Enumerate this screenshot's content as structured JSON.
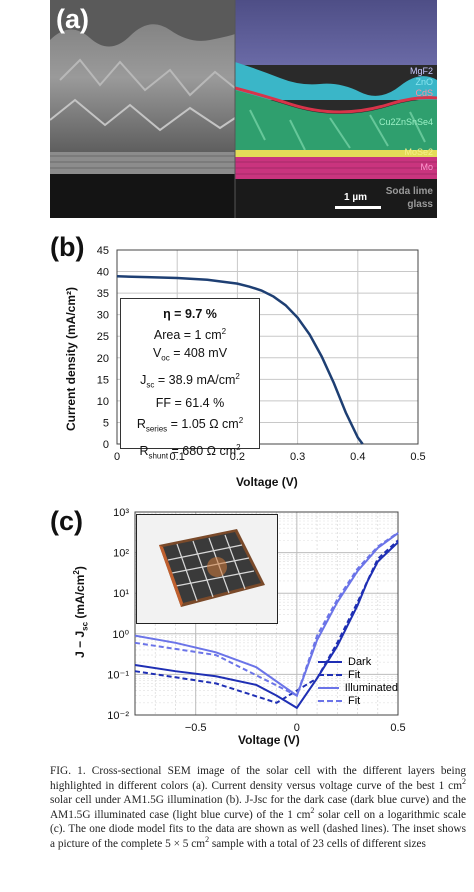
{
  "panel_a": {
    "letter": "(a)",
    "layers": [
      "MgF2",
      "ZnO",
      "CdS",
      "Cu2ZnSnSe4",
      "MoSe2",
      "Mo",
      "Soda lime",
      "glass"
    ],
    "scale_bar": "1 µm"
  },
  "panel_b": {
    "letter": "(b)",
    "box": {
      "eta": "η = 9.7 %",
      "area_pre": "Area = 1 cm",
      "area_sup": "2",
      "voc_pre": "V",
      "voc_sub": "oc",
      "voc_post": " = 408 mV",
      "jsc_pre": "J",
      "jsc_sub": "sc",
      "jsc_post": " = 38.9 mA/cm",
      "jsc_sup": "2",
      "ff": "FF = 61.4 %",
      "rs_pre": "R",
      "rs_sub": "series",
      "rs_post": " = 1.05 Ω cm",
      "rs_sup": "2",
      "rsh_pre": "R",
      "rsh_sub": "shunt",
      "rsh_post": " = 680 Ω cm",
      "rsh_sup": "2"
    }
  },
  "panel_c": {
    "letter": "(c)",
    "legend": [
      "Dark",
      "Fit",
      "Illuminated",
      "Fit"
    ]
  },
  "colors": {
    "dark_blue": "#1f2fb4",
    "light_blue": "#6b74e8",
    "curve_b": "#1e3f73"
  },
  "caption": {
    "p1": "FIG. 1. Cross-sectional SEM image of the solar cell with the different layers being highlighted in different colors (a). Current density versus voltage curve of the best 1 cm",
    "p1_sup": "2",
    "p2": " solar cell under AM1.5G illumination (b). J-Jsc for the dark case (dark blue curve) and the AM1.5G illuminated case (light blue curve) of the 1 cm",
    "p2_sup": "2",
    "p3": " solar cell on a logarithmic scale (c). The one diode model fits to the data are shown as well (dashed lines). The inset shows a picture of the complete 5 × 5 cm",
    "p3_sup": "2",
    "p4": " sample with a total of 23 cells of different sizes"
  },
  "chart_data": [
    {
      "type": "line",
      "xlabel": "Voltage (V)",
      "ylabel": "Current density (mA/cm²)",
      "xlim": [
        0,
        0.5
      ],
      "ylim": [
        0,
        45
      ],
      "x_ticks": [
        "0",
        "0.1",
        "0.2",
        "0.3",
        "0.4",
        "0.5"
      ],
      "y_ticks": [
        "0",
        "5",
        "10",
        "15",
        "20",
        "25",
        "30",
        "35",
        "40",
        "45"
      ],
      "grid": true,
      "series": [
        {
          "x": [
            0,
            0.05,
            0.1,
            0.15,
            0.2,
            0.22,
            0.24,
            0.26,
            0.28,
            0.3,
            0.32,
            0.34,
            0.36,
            0.38,
            0.4,
            0.408
          ],
          "y": [
            38.9,
            38.7,
            38.5,
            38.1,
            37.2,
            36.5,
            35.6,
            34.2,
            32.2,
            29.3,
            25.4,
            20.3,
            14.2,
            7.3,
            1.5,
            0
          ]
        }
      ]
    },
    {
      "type": "line",
      "xlabel": "Voltage (V)",
      "ylabel": "J − J_sc (mA/cm²)",
      "xlim": [
        -0.8,
        0.5
      ],
      "ylim": [
        0.01,
        1000
      ],
      "log_y": true,
      "x_ticks": [
        "−0.5",
        "0",
        "0.5"
      ],
      "y_ticks": [
        "10⁻²",
        "10⁻¹",
        "10⁰",
        "10¹",
        "10²",
        "10³"
      ],
      "grid": true,
      "series": [
        {
          "name": "Dark",
          "x": [
            -0.8,
            -0.6,
            -0.4,
            -0.2,
            -0.1,
            0,
            0.1,
            0.2,
            0.3,
            0.35,
            0.4,
            0.5
          ],
          "y": [
            0.17,
            0.12,
            0.09,
            0.055,
            0.03,
            0.015,
            0.08,
            0.5,
            5,
            20,
            60,
            180
          ]
        },
        {
          "name": "Fit",
          "x": [
            -0.8,
            -0.4,
            -0.1,
            0.1,
            0.2,
            0.3,
            0.4,
            0.5
          ],
          "y": [
            0.12,
            0.06,
            0.02,
            0.08,
            0.6,
            6,
            70,
            200
          ]
        },
        {
          "name": "Illuminated",
          "x": [
            -0.8,
            -0.6,
            -0.4,
            -0.2,
            0,
            0.1,
            0.2,
            0.3,
            0.4,
            0.5
          ],
          "y": [
            0.9,
            0.6,
            0.35,
            0.15,
            0.03,
            0.7,
            6,
            35,
            130,
            300
          ]
        },
        {
          "name": "Fit",
          "x": [
            -0.8,
            -0.4,
            0,
            0.1,
            0.2,
            0.3,
            0.4,
            0.5
          ],
          "y": [
            0.6,
            0.3,
            0.03,
            0.9,
            7,
            40,
            140,
            310
          ]
        }
      ]
    }
  ]
}
